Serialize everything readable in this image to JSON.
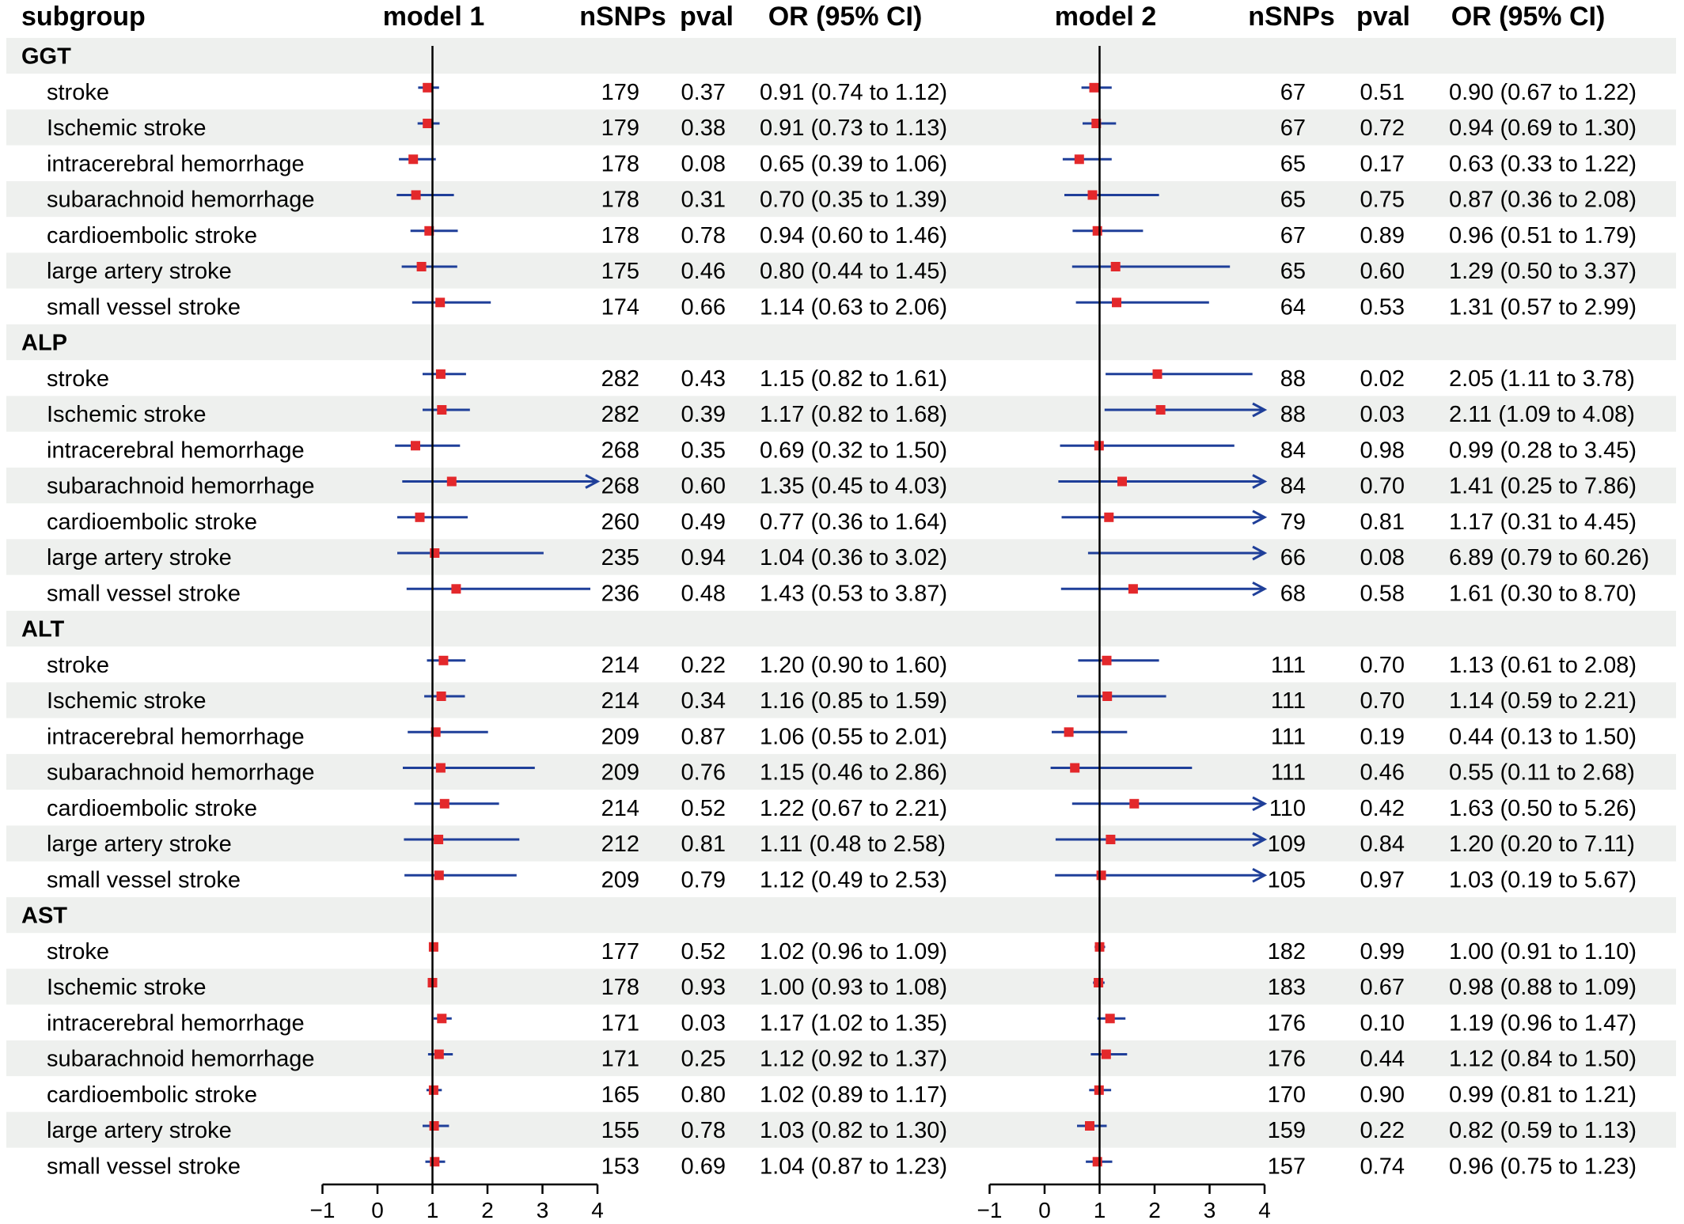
{
  "headers": {
    "subgroup": "subgroup",
    "model1": "model 1",
    "model2": "model 2",
    "nsnps": "nSNPs",
    "pval": "pval",
    "or": "OR (95% CI)"
  },
  "colors": {
    "band": "#eef0ee",
    "ci_line": "#1f3f99",
    "point": "#e3282b",
    "axis": "#000000"
  },
  "chart_data": {
    "type": "forest",
    "axis_ticks": [
      "−1",
      "0",
      "1",
      "2",
      "3",
      "4"
    ],
    "xlim": [
      -1,
      4
    ],
    "reference_line": 1,
    "models": [
      "model 1",
      "model 2"
    ],
    "groups": [
      {
        "name": "GGT",
        "rows": [
          {
            "label": "stroke",
            "m1": {
              "nsnps": "179",
              "pval": "0.37",
              "or": 0.91,
              "lo": 0.74,
              "hi": 1.12,
              "text": "0.91 (0.74 to 1.12)"
            },
            "m2": {
              "nsnps": "67",
              "pval": "0.51",
              "or": 0.9,
              "lo": 0.67,
              "hi": 1.22,
              "text": "0.90 (0.67 to 1.22)"
            }
          },
          {
            "label": "Ischemic stroke",
            "m1": {
              "nsnps": "179",
              "pval": "0.38",
              "or": 0.91,
              "lo": 0.73,
              "hi": 1.13,
              "text": "0.91 (0.73 to 1.13)"
            },
            "m2": {
              "nsnps": "67",
              "pval": "0.72",
              "or": 0.94,
              "lo": 0.69,
              "hi": 1.3,
              "text": "0.94 (0.69 to 1.30)"
            }
          },
          {
            "label": "intracerebral hemorrhage",
            "m1": {
              "nsnps": "178",
              "pval": "0.08",
              "or": 0.65,
              "lo": 0.39,
              "hi": 1.06,
              "text": "0.65 (0.39 to 1.06)"
            },
            "m2": {
              "nsnps": "65",
              "pval": "0.17",
              "or": 0.63,
              "lo": 0.33,
              "hi": 1.22,
              "text": "0.63 (0.33 to 1.22)"
            }
          },
          {
            "label": "subarachnoid hemorrhage",
            "m1": {
              "nsnps": "178",
              "pval": "0.31",
              "or": 0.7,
              "lo": 0.35,
              "hi": 1.39,
              "text": "0.70 (0.35 to 1.39)"
            },
            "m2": {
              "nsnps": "65",
              "pval": "0.75",
              "or": 0.87,
              "lo": 0.36,
              "hi": 2.08,
              "text": "0.87 (0.36 to 2.08)"
            }
          },
          {
            "label": "cardioembolic stroke",
            "m1": {
              "nsnps": "178",
              "pval": "0.78",
              "or": 0.94,
              "lo": 0.6,
              "hi": 1.46,
              "text": "0.94 (0.60 to 1.46)"
            },
            "m2": {
              "nsnps": "67",
              "pval": "0.89",
              "or": 0.96,
              "lo": 0.51,
              "hi": 1.79,
              "text": "0.96 (0.51 to 1.79)"
            }
          },
          {
            "label": "large artery stroke",
            "m1": {
              "nsnps": "175",
              "pval": "0.46",
              "or": 0.8,
              "lo": 0.44,
              "hi": 1.45,
              "text": "0.80 (0.44 to 1.45)"
            },
            "m2": {
              "nsnps": "65",
              "pval": "0.60",
              "or": 1.29,
              "lo": 0.5,
              "hi": 3.37,
              "text": "1.29 (0.50 to 3.37)"
            }
          },
          {
            "label": "small vessel stroke",
            "m1": {
              "nsnps": "174",
              "pval": "0.66",
              "or": 1.14,
              "lo": 0.63,
              "hi": 2.06,
              "text": "1.14 (0.63 to 2.06)"
            },
            "m2": {
              "nsnps": "64",
              "pval": "0.53",
              "or": 1.31,
              "lo": 0.57,
              "hi": 2.99,
              "text": "1.31 (0.57 to 2.99)"
            }
          }
        ]
      },
      {
        "name": "ALP",
        "rows": [
          {
            "label": "stroke",
            "m1": {
              "nsnps": "282",
              "pval": "0.43",
              "or": 1.15,
              "lo": 0.82,
              "hi": 1.61,
              "text": "1.15 (0.82 to 1.61)"
            },
            "m2": {
              "nsnps": "88",
              "pval": "0.02",
              "or": 2.05,
              "lo": 1.11,
              "hi": 3.78,
              "text": "2.05 (1.11 to 3.78)"
            }
          },
          {
            "label": "Ischemic stroke",
            "m1": {
              "nsnps": "282",
              "pval": "0.39",
              "or": 1.17,
              "lo": 0.82,
              "hi": 1.68,
              "text": "1.17 (0.82 to 1.68)"
            },
            "m2": {
              "nsnps": "88",
              "pval": "0.03",
              "or": 2.11,
              "lo": 1.09,
              "hi": 4.08,
              "text": "2.11 (1.09 to 4.08)"
            }
          },
          {
            "label": "intracerebral hemorrhage",
            "m1": {
              "nsnps": "268",
              "pval": "0.35",
              "or": 0.69,
              "lo": 0.32,
              "hi": 1.5,
              "text": "0.69 (0.32 to 1.50)"
            },
            "m2": {
              "nsnps": "84",
              "pval": "0.98",
              "or": 0.99,
              "lo": 0.28,
              "hi": 3.45,
              "text": "0.99 (0.28 to 3.45)"
            }
          },
          {
            "label": "subarachnoid hemorrhage",
            "m1": {
              "nsnps": "268",
              "pval": "0.60",
              "or": 1.35,
              "lo": 0.45,
              "hi": 4.03,
              "text": "1.35 (0.45 to 4.03)"
            },
            "m2": {
              "nsnps": "84",
              "pval": "0.70",
              "or": 1.41,
              "lo": 0.25,
              "hi": 7.86,
              "text": "1.41 (0.25 to 7.86)"
            }
          },
          {
            "label": "cardioembolic stroke",
            "m1": {
              "nsnps": "260",
              "pval": "0.49",
              "or": 0.77,
              "lo": 0.36,
              "hi": 1.64,
              "text": "0.77 (0.36 to 1.64)"
            },
            "m2": {
              "nsnps": "79",
              "pval": "0.81",
              "or": 1.17,
              "lo": 0.31,
              "hi": 4.45,
              "text": "1.17 (0.31 to 4.45)"
            }
          },
          {
            "label": "large artery stroke",
            "m1": {
              "nsnps": "235",
              "pval": "0.94",
              "or": 1.04,
              "lo": 0.36,
              "hi": 3.02,
              "text": "1.04 (0.36 to 3.02)"
            },
            "m2": {
              "nsnps": "66",
              "pval": "0.08",
              "or": 6.89,
              "lo": 0.79,
              "hi": 60.26,
              "text": "6.89 (0.79 to 60.26)"
            }
          },
          {
            "label": "small vessel stroke",
            "m1": {
              "nsnps": "236",
              "pval": "0.48",
              "or": 1.43,
              "lo": 0.53,
              "hi": 3.87,
              "text": "1.43 (0.53 to 3.87)"
            },
            "m2": {
              "nsnps": "68",
              "pval": "0.58",
              "or": 1.61,
              "lo": 0.3,
              "hi": 8.7,
              "text": "1.61 (0.30 to 8.70)"
            }
          }
        ]
      },
      {
        "name": "ALT",
        "rows": [
          {
            "label": "stroke",
            "m1": {
              "nsnps": "214",
              "pval": "0.22",
              "or": 1.2,
              "lo": 0.9,
              "hi": 1.6,
              "text": "1.20 (0.90 to 1.60)"
            },
            "m2": {
              "nsnps": "111",
              "pval": "0.70",
              "or": 1.13,
              "lo": 0.61,
              "hi": 2.08,
              "text": "1.13 (0.61 to 2.08)"
            }
          },
          {
            "label": "Ischemic stroke",
            "m1": {
              "nsnps": "214",
              "pval": "0.34",
              "or": 1.16,
              "lo": 0.85,
              "hi": 1.59,
              "text": "1.16 (0.85 to 1.59)"
            },
            "m2": {
              "nsnps": "111",
              "pval": "0.70",
              "or": 1.14,
              "lo": 0.59,
              "hi": 2.21,
              "text": "1.14 (0.59 to 2.21)"
            }
          },
          {
            "label": "intracerebral hemorrhage",
            "m1": {
              "nsnps": "209",
              "pval": "0.87",
              "or": 1.06,
              "lo": 0.55,
              "hi": 2.01,
              "text": "1.06 (0.55 to 2.01)"
            },
            "m2": {
              "nsnps": "111",
              "pval": "0.19",
              "or": 0.44,
              "lo": 0.13,
              "hi": 1.5,
              "text": "0.44 (0.13 to 1.50)"
            }
          },
          {
            "label": "subarachnoid hemorrhage",
            "m1": {
              "nsnps": "209",
              "pval": "0.76",
              "or": 1.15,
              "lo": 0.46,
              "hi": 2.86,
              "text": "1.15 (0.46 to 2.86)"
            },
            "m2": {
              "nsnps": "111",
              "pval": "0.46",
              "or": 0.55,
              "lo": 0.11,
              "hi": 2.68,
              "text": "0.55 (0.11 to 2.68)"
            }
          },
          {
            "label": "cardioembolic stroke",
            "m1": {
              "nsnps": "214",
              "pval": "0.52",
              "or": 1.22,
              "lo": 0.67,
              "hi": 2.21,
              "text": "1.22 (0.67 to 2.21)"
            },
            "m2": {
              "nsnps": "110",
              "pval": "0.42",
              "or": 1.63,
              "lo": 0.5,
              "hi": 5.26,
              "text": "1.63 (0.50 to 5.26)"
            }
          },
          {
            "label": "large artery stroke",
            "m1": {
              "nsnps": "212",
              "pval": "0.81",
              "or": 1.11,
              "lo": 0.48,
              "hi": 2.58,
              "text": "1.11 (0.48 to 2.58)"
            },
            "m2": {
              "nsnps": "109",
              "pval": "0.84",
              "or": 1.2,
              "lo": 0.2,
              "hi": 7.11,
              "text": "1.20 (0.20 to 7.11)"
            }
          },
          {
            "label": "small vessel stroke",
            "m1": {
              "nsnps": "209",
              "pval": "0.79",
              "or": 1.12,
              "lo": 0.49,
              "hi": 2.53,
              "text": "1.12 (0.49 to 2.53)"
            },
            "m2": {
              "nsnps": "105",
              "pval": "0.97",
              "or": 1.03,
              "lo": 0.19,
              "hi": 5.67,
              "text": "1.03 (0.19 to 5.67)"
            }
          }
        ]
      },
      {
        "name": "AST",
        "rows": [
          {
            "label": "stroke",
            "m1": {
              "nsnps": "177",
              "pval": "0.52",
              "or": 1.02,
              "lo": 0.96,
              "hi": 1.09,
              "text": "1.02 (0.96 to 1.09)"
            },
            "m2": {
              "nsnps": "182",
              "pval": "0.99",
              "or": 1.0,
              "lo": 0.91,
              "hi": 1.1,
              "text": "1.00 (0.91 to 1.10)"
            }
          },
          {
            "label": "Ischemic stroke",
            "m1": {
              "nsnps": "178",
              "pval": "0.93",
              "or": 1.0,
              "lo": 0.93,
              "hi": 1.08,
              "text": "1.00 (0.93 to 1.08)"
            },
            "m2": {
              "nsnps": "183",
              "pval": "0.67",
              "or": 0.98,
              "lo": 0.88,
              "hi": 1.09,
              "text": "0.98 (0.88 to 1.09)"
            }
          },
          {
            "label": "intracerebral hemorrhage",
            "m1": {
              "nsnps": "171",
              "pval": "0.03",
              "or": 1.17,
              "lo": 1.02,
              "hi": 1.35,
              "text": "1.17 (1.02 to 1.35)"
            },
            "m2": {
              "nsnps": "176",
              "pval": "0.10",
              "or": 1.19,
              "lo": 0.96,
              "hi": 1.47,
              "text": "1.19 (0.96 to 1.47)"
            }
          },
          {
            "label": "subarachnoid hemorrhage",
            "m1": {
              "nsnps": "171",
              "pval": "0.25",
              "or": 1.12,
              "lo": 0.92,
              "hi": 1.37,
              "text": "1.12 (0.92 to 1.37)"
            },
            "m2": {
              "nsnps": "176",
              "pval": "0.44",
              "or": 1.12,
              "lo": 0.84,
              "hi": 1.5,
              "text": "1.12 (0.84 to 1.50)"
            }
          },
          {
            "label": "cardioembolic stroke",
            "m1": {
              "nsnps": "165",
              "pval": "0.80",
              "or": 1.02,
              "lo": 0.89,
              "hi": 1.17,
              "text": "1.02 (0.89 to 1.17)"
            },
            "m2": {
              "nsnps": "170",
              "pval": "0.90",
              "or": 0.99,
              "lo": 0.81,
              "hi": 1.21,
              "text": "0.99 (0.81 to 1.21)"
            }
          },
          {
            "label": "large artery stroke",
            "m1": {
              "nsnps": "155",
              "pval": "0.78",
              "or": 1.03,
              "lo": 0.82,
              "hi": 1.3,
              "text": "1.03 (0.82 to 1.30)"
            },
            "m2": {
              "nsnps": "159",
              "pval": "0.22",
              "or": 0.82,
              "lo": 0.59,
              "hi": 1.13,
              "text": "0.82 (0.59 to 1.13)"
            }
          },
          {
            "label": "small vessel stroke",
            "m1": {
              "nsnps": "153",
              "pval": "0.69",
              "or": 1.04,
              "lo": 0.87,
              "hi": 1.23,
              "text": "1.04 (0.87 to 1.23)"
            },
            "m2": {
              "nsnps": "157",
              "pval": "0.74",
              "or": 0.96,
              "lo": 0.75,
              "hi": 1.23,
              "text": "0.96 (0.75 to 1.23)"
            }
          }
        ]
      }
    ]
  }
}
